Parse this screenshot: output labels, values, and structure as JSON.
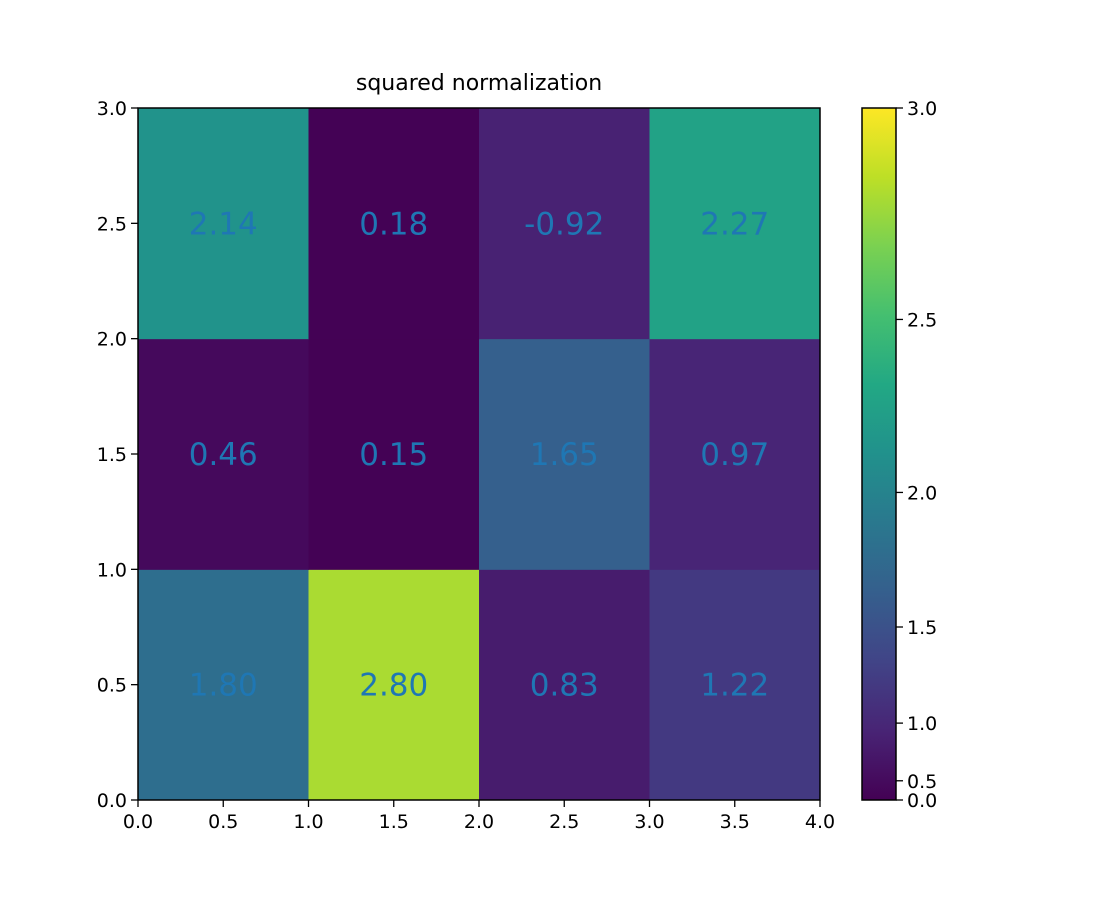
{
  "chart_data": {
    "type": "heatmap",
    "title": "squared normalization",
    "xlabel": "",
    "ylabel": "",
    "xlim": [
      0,
      4
    ],
    "ylim": [
      0,
      3
    ],
    "x_ticks": [
      "0.0",
      "0.5",
      "1.0",
      "1.5",
      "2.0",
      "2.5",
      "3.0",
      "3.5",
      "4.0"
    ],
    "y_ticks": [
      "0.0",
      "0.5",
      "1.0",
      "1.5",
      "2.0",
      "2.5",
      "3.0"
    ],
    "rows_bottom_to_top": [
      [
        1.8,
        2.8,
        0.83,
        1.22
      ],
      [
        0.46,
        0.15,
        1.65,
        0.97
      ],
      [
        2.14,
        0.18,
        -0.92,
        2.27
      ]
    ],
    "cell_labels_bottom_to_top": [
      [
        "1.80",
        "2.80",
        "0.83",
        "1.22"
      ],
      [
        "0.46",
        "0.15",
        "1.65",
        "0.97"
      ],
      [
        "2.14",
        "0.18",
        "-0.92",
        "2.27"
      ]
    ],
    "colormap": "viridis",
    "norm": "power, gamma 2",
    "color_range": [
      0,
      3
    ],
    "colorbar_ticks": [
      "0.0",
      "0.5",
      "1.0",
      "1.5",
      "2.0",
      "2.5",
      "3.0"
    ],
    "annotation_color": "#1f77b4"
  }
}
